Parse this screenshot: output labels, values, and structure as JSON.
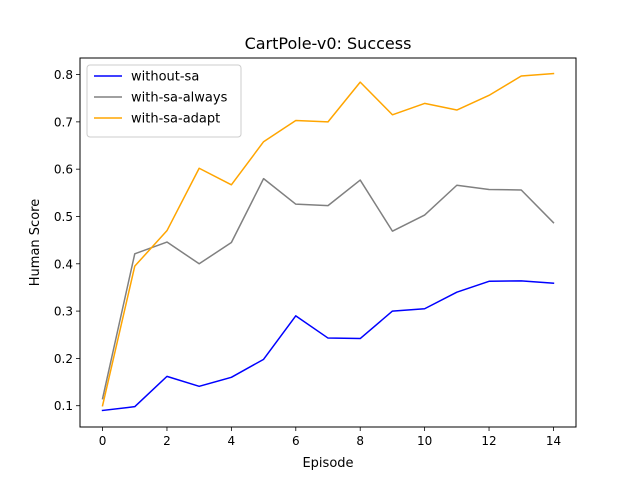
{
  "chart_data": {
    "type": "line",
    "title": "CartPole-v0: Success",
    "xlabel": "Episode",
    "ylabel": "Human Score",
    "xlim": [
      -0.7,
      14.7
    ],
    "ylim": [
      0.055,
      0.835
    ],
    "xticks": [
      0,
      2,
      4,
      6,
      8,
      10,
      12,
      14
    ],
    "yticks": [
      0.1,
      0.2,
      0.3,
      0.4,
      0.5,
      0.6,
      0.7,
      0.8
    ],
    "grid": false,
    "legend_position": "upper-left",
    "x": [
      0,
      1,
      2,
      3,
      4,
      5,
      6,
      7,
      8,
      9,
      10,
      11,
      12,
      13,
      14
    ],
    "series": [
      {
        "name": "without-sa",
        "color": "#0000ff",
        "values": [
          0.09,
          0.098,
          0.162,
          0.141,
          0.16,
          0.198,
          0.29,
          0.243,
          0.242,
          0.3,
          0.305,
          0.34,
          0.363,
          0.364,
          0.359
        ]
      },
      {
        "name": "with-sa-always",
        "color": "#808080",
        "values": [
          0.115,
          0.421,
          0.446,
          0.4,
          0.445,
          0.58,
          0.526,
          0.523,
          0.577,
          0.469,
          0.503,
          0.566,
          0.557,
          0.556,
          0.487
        ]
      },
      {
        "name": "with-sa-adapt",
        "color": "#ffa500",
        "values": [
          0.1,
          0.395,
          0.47,
          0.602,
          0.567,
          0.658,
          0.703,
          0.7,
          0.784,
          0.715,
          0.739,
          0.725,
          0.756,
          0.797,
          0.802
        ]
      }
    ]
  }
}
